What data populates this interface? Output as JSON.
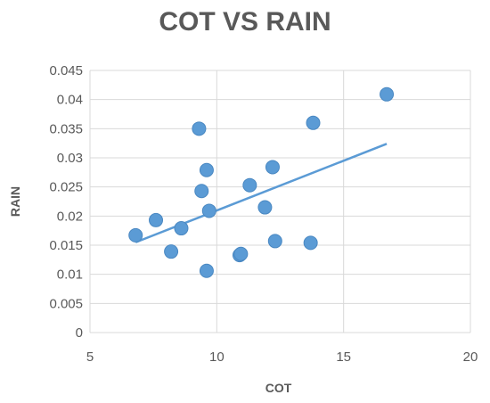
{
  "chart_data": {
    "type": "scatter",
    "title": "COT VS RAIN",
    "xlabel": "COT",
    "ylabel": "RAIN",
    "xlim": [
      5,
      20
    ],
    "ylim": [
      0,
      0.045
    ],
    "x_ticks": [
      "5",
      "10",
      "15",
      "20"
    ],
    "y_ticks": [
      "0",
      "0.005",
      "0.01",
      "0.015",
      "0.02",
      "0.025",
      "0.03",
      "0.035",
      "0.04",
      "0.045"
    ],
    "grid": true,
    "legend": "none",
    "series": [
      {
        "points": [
          {
            "x": 6.8,
            "y": 0.0167
          },
          {
            "x": 7.6,
            "y": 0.0193
          },
          {
            "x": 8.2,
            "y": 0.0139
          },
          {
            "x": 8.6,
            "y": 0.0179
          },
          {
            "x": 9.3,
            "y": 0.035
          },
          {
            "x": 9.4,
            "y": 0.0243
          },
          {
            "x": 9.6,
            "y": 0.0279
          },
          {
            "x": 9.6,
            "y": 0.0106
          },
          {
            "x": 9.7,
            "y": 0.0209
          },
          {
            "x": 10.9,
            "y": 0.0133
          },
          {
            "x": 10.95,
            "y": 0.0135
          },
          {
            "x": 11.3,
            "y": 0.0253
          },
          {
            "x": 11.9,
            "y": 0.0215
          },
          {
            "x": 12.2,
            "y": 0.0284
          },
          {
            "x": 12.3,
            "y": 0.0157
          },
          {
            "x": 13.7,
            "y": 0.0154
          },
          {
            "x": 13.8,
            "y": 0.036
          },
          {
            "x": 16.7,
            "y": 0.0409
          }
        ]
      }
    ],
    "trendline": {
      "x": [
        6.8,
        16.7
      ],
      "y": [
        0.0155,
        0.0324
      ]
    },
    "colors": {
      "marker": "#5b9bd5",
      "marker_stroke": "#4a88c2",
      "trendline": "#5b9bd5",
      "grid": "#d9d9d9",
      "text": "#595959"
    }
  }
}
